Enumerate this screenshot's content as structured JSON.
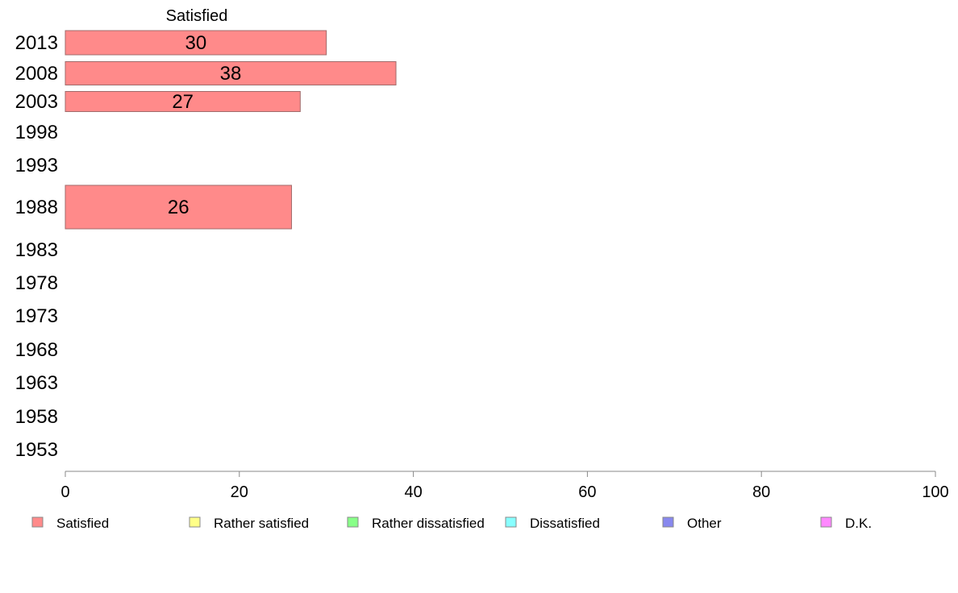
{
  "chart_data": {
    "type": "bar",
    "orientation": "horizontal",
    "stacked": true,
    "column_header": "Satisfied",
    "categories": [
      "2013",
      "2008",
      "2003",
      "1998",
      "1993",
      "1988",
      "1983",
      "1978",
      "1973",
      "1968",
      "1963",
      "1958",
      "1953"
    ],
    "series": [
      {
        "name": "Satisfied",
        "color": "#ff8a8a",
        "values": [
          30,
          38,
          27,
          null,
          null,
          26,
          null,
          null,
          null,
          null,
          null,
          null,
          null
        ]
      },
      {
        "name": "Rather satisfied",
        "color": "#ffff88",
        "values": [
          null,
          null,
          null,
          null,
          null,
          null,
          null,
          null,
          null,
          null,
          null,
          null,
          null
        ]
      },
      {
        "name": "Rather dissatisfied",
        "color": "#88ff88",
        "values": [
          null,
          null,
          null,
          null,
          null,
          null,
          null,
          null,
          null,
          null,
          null,
          null,
          null
        ]
      },
      {
        "name": "Dissatisfied",
        "color": "#88ffff",
        "values": [
          null,
          null,
          null,
          null,
          null,
          null,
          null,
          null,
          null,
          null,
          null,
          null,
          null
        ]
      },
      {
        "name": "Other",
        "color": "#8888ee",
        "values": [
          null,
          null,
          null,
          null,
          null,
          null,
          null,
          null,
          null,
          null,
          null,
          null,
          null
        ]
      },
      {
        "name": "D.K.",
        "color": "#ff88ff",
        "values": [
          null,
          null,
          null,
          null,
          null,
          null,
          null,
          null,
          null,
          null,
          null,
          null,
          null
        ]
      }
    ],
    "xlim": [
      0,
      100
    ],
    "xticks": [
      0,
      20,
      40,
      60,
      80,
      100
    ],
    "title": "",
    "xlabel": "",
    "ylabel": "",
    "grid": false,
    "legend_position": "bottom"
  }
}
